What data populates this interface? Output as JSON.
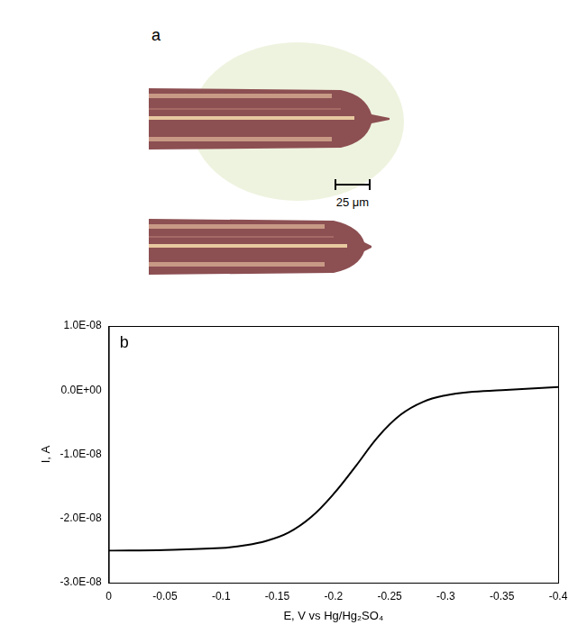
{
  "panel_a": {
    "label": "a",
    "scale_bar": "25 μm"
  },
  "chart_data": {
    "type": "line",
    "panel_label": "b",
    "x_label": "E, V vs Hg/Hg₂SO₄",
    "y_label": "I, A",
    "x": [
      0,
      -0.05,
      -0.1,
      -0.12,
      -0.14,
      -0.16,
      -0.18,
      -0.2,
      -0.22,
      -0.24,
      -0.26,
      -0.28,
      -0.3,
      -0.32,
      -0.35,
      -0.4
    ],
    "values": [
      -2.5e-08,
      -2.49e-08,
      -2.46e-08,
      -2.42e-08,
      -2.35e-08,
      -2.22e-08,
      -1.98e-08,
      -1.62e-08,
      -1.18e-08,
      -7.2e-09,
      -3.8e-09,
      -1.8e-09,
      -8e-10,
      -3e-10,
      0.0,
      5e-10
    ],
    "color": "#000000",
    "xlim": [
      0,
      -0.4
    ],
    "xticks": [
      0,
      -0.05,
      -0.1,
      -0.15,
      -0.2,
      -0.25,
      -0.3,
      -0.35,
      -0.4
    ],
    "ylim": [
      -3e-08,
      1e-08
    ],
    "yticks": [
      {
        "value": -3e-08,
        "label": "-3.0E-08"
      },
      {
        "value": -2e-08,
        "label": "-2.0E-08"
      },
      {
        "value": -1e-08,
        "label": "-1.0E-08"
      },
      {
        "value": 0,
        "label": "0.0E+00"
      },
      {
        "value": 1e-08,
        "label": "1.0E-08"
      }
    ],
    "grid": false
  }
}
